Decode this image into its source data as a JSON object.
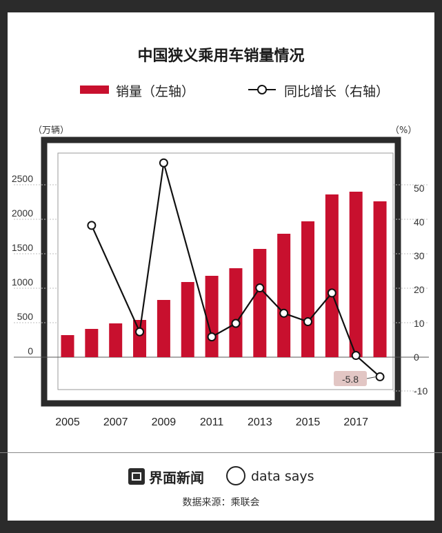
{
  "title": "中国狭义乘用车销量情况",
  "legend": {
    "bar_label": "销量（左轴）",
    "line_label": "同比增长（右轴）"
  },
  "units": {
    "left": "（万辆）",
    "right": "（%）"
  },
  "colors": {
    "bar": "#c8102e",
    "line": "#111111",
    "frame": "#2b2b2b",
    "callout": "#e2c6c4"
  },
  "footer": {
    "logo_jiemian": "界面新闻",
    "logo_datasays": "data says",
    "source": "数据来源：乘联会"
  },
  "chart_data": {
    "type": "bar",
    "x": [
      2005,
      2006,
      2007,
      2008,
      2009,
      2010,
      2011,
      2012,
      2013,
      2014,
      2015,
      2016,
      2017,
      2018
    ],
    "x_tick_labels": [
      "2005",
      "2007",
      "2009",
      "2011",
      "2013",
      "2015",
      "2017"
    ],
    "series": [
      {
        "name": "销量（左轴）",
        "type": "bar",
        "axis": "left",
        "values": [
          320,
          410,
          490,
          540,
          830,
          1090,
          1180,
          1290,
          1570,
          1790,
          1970,
          2360,
          2400,
          2260
        ]
      },
      {
        "name": "同比增长（右轴）",
        "type": "line",
        "axis": "right",
        "values": [
          null,
          39,
          null,
          7.5,
          57.5,
          null,
          6,
          10,
          20.5,
          13,
          10.5,
          19,
          0.5,
          -5.8
        ]
      }
    ],
    "y_left": {
      "ticks": [
        "0",
        "500",
        "1000",
        "1500",
        "2000",
        "2500"
      ],
      "range": [
        -500,
        3000
      ]
    },
    "y_right": {
      "ticks": [
        "-10",
        "0",
        "10",
        "20",
        "30",
        "40",
        "50"
      ],
      "range": [
        -10,
        60
      ]
    },
    "annotation": "-5.8",
    "grid": true
  }
}
